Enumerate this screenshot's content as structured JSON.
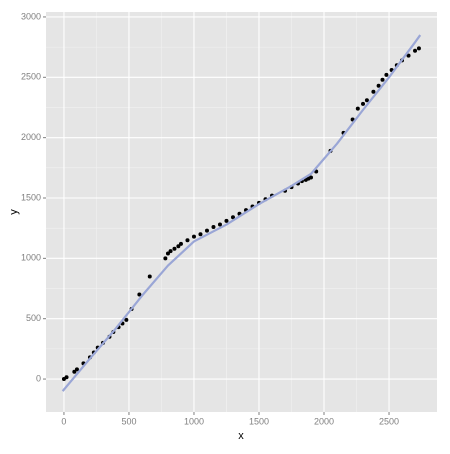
{
  "chart_data": {
    "type": "scatter",
    "x_label": "x",
    "y_label": "y",
    "xlim": [
      -138,
      2869
    ],
    "ylim": [
      -273,
      3041
    ],
    "xticks": [
      0,
      500,
      1000,
      1500,
      2000,
      2500
    ],
    "yticks": [
      0,
      500,
      1000,
      1500,
      2000,
      2500,
      3000
    ],
    "grid": true,
    "series": [
      {
        "type": "point",
        "color": "#000000",
        "x": [
          0,
          20,
          80,
          100,
          150,
          200,
          230,
          260,
          300,
          350,
          380,
          420,
          450,
          480,
          520,
          580,
          660,
          780,
          800,
          820,
          850,
          880,
          900,
          950,
          1000,
          1050,
          1100,
          1150,
          1200,
          1250,
          1300,
          1350,
          1400,
          1450,
          1500,
          1550,
          1600,
          1700,
          1750,
          1800,
          1830,
          1860,
          1880,
          1900,
          1940,
          2050,
          2150,
          2220,
          2260,
          2300,
          2330,
          2380,
          2420,
          2450,
          2480,
          2520,
          2560,
          2600,
          2650,
          2700,
          2730
        ],
        "values": [
          0,
          15,
          60,
          80,
          130,
          180,
          220,
          260,
          300,
          350,
          390,
          430,
          460,
          490,
          580,
          700,
          850,
          1000,
          1040,
          1060,
          1080,
          1100,
          1120,
          1150,
          1180,
          1200,
          1230,
          1260,
          1280,
          1310,
          1340,
          1370,
          1400,
          1430,
          1460,
          1490,
          1520,
          1560,
          1590,
          1620,
          1640,
          1650,
          1660,
          1670,
          1720,
          1890,
          2040,
          2150,
          2240,
          2280,
          2310,
          2380,
          2430,
          2480,
          2520,
          2560,
          2600,
          2640,
          2680,
          2720,
          2740
        ]
      },
      {
        "type": "smooth",
        "color": "#9aa6d6",
        "x": [
          -10,
          200,
          400,
          600,
          800,
          1000,
          1250,
          1500,
          1750,
          1900,
          2100,
          2300,
          2500,
          2700,
          2740
        ],
        "values": [
          -100,
          170,
          420,
          690,
          940,
          1140,
          1280,
          1450,
          1600,
          1700,
          1950,
          2230,
          2500,
          2790,
          2850
        ]
      }
    ]
  }
}
